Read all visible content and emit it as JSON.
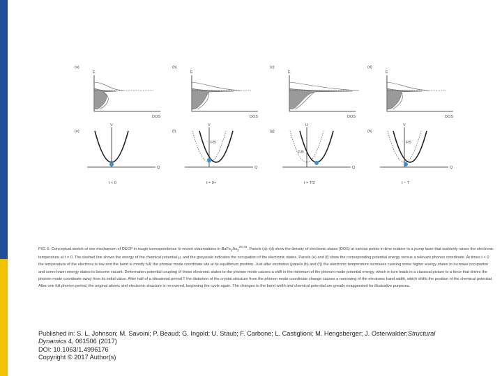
{
  "figure": {
    "top_panels": [
      {
        "label": "(a)",
        "y_axis": "E",
        "x_axis": "DOS",
        "dist_width": 32
      },
      {
        "label": "(b)",
        "y_axis": "E",
        "x_axis": "DOS",
        "dist_width": 60
      },
      {
        "label": "(c)",
        "y_axis": "E",
        "x_axis": "DOS",
        "dist_width": 90
      },
      {
        "label": "(d)",
        "y_axis": "E",
        "x_axis": "DOS",
        "dist_width": 50
      }
    ],
    "bottom_panels": [
      {
        "label": "(e)",
        "y_axis": "V",
        "x_axis": "Q",
        "time": "t < 0",
        "force": "",
        "offset": 0
      },
      {
        "label": "(f)",
        "y_axis": "V",
        "x_axis": "Q",
        "time": "t = 0+",
        "force": "FΘ",
        "offset": 10
      },
      {
        "label": "(g)",
        "y_axis": "U",
        "x_axis": "Q",
        "time": "t = T/2",
        "force": "FΘ",
        "offset": 14
      },
      {
        "label": "(h)",
        "y_axis": "V",
        "x_axis": "Q",
        "time": "t ~ T",
        "force": "FΘ",
        "offset": 8
      }
    ],
    "colors": {
      "fill": "#9a9a9a",
      "line": "#222222",
      "dot": "#3a8fd6"
    }
  },
  "caption": {
    "prefix": "FIG. 6. Conceptual sketch of one mechanism of DECP in rough correspondence to recent observations in BaFe",
    "sub1": "2",
    "mid": "As",
    "sub2": "2",
    "sup": "20,34",
    "body": ". Panels (a)–(d) show the density of electronic states (DOS) at various points in time relative to a pump laser that suddenly raises the electronic temperature at t = 0. The dashed line shows the energy of the chemical potential μ, and the greyscale indicates the occupation of the electronic states. Panels (e) and (f) show the corresponding potential energy versus a relevant phonon coordinate. At times t < 0 the temperature of the electrons is low and the band is mostly full; the phonon mode coordinate sits at its equilibrium position. Just after excitation (panels (b) and (f)) the electronic temperature increases causing some higher energy states to increase occupation and some lower energy states to become vacant. Deformation potential coupling of these electronic states to the phonon mode causes a shift in the minimum of the phonon mode potential energy, which in turn leads in a classical picture to a force that drives the phonon mode coordinate away from its initial value. After half of a vibrational period T the distortion of the crystal structure from the phonon mode coordinate change causes a narrowing of the electronic band width, which shifts the position of the chemical potential. After one full phonon period, the original atomic and electronic structure is recovered, beginning the cycle again. The changes to the band width and chemical potential are greatly exaggerated for illustrative purposes."
  },
  "citation": {
    "published_prefix": "Published in: S. L. Johnson; M. Savoini; P. Beaud; G. Ingold; U. Staub; F. Carbone; L. Castiglioni; M. Hengsberger; J. Osterwalder;",
    "journal_part1": "Structural",
    "journal_part2": "Dynamics",
    "volume": " 4, 061506 (2017)",
    "doi": "DOI: 10.1063/1.4996176",
    "copyright": "Copyright © 2017 Author(s)"
  }
}
